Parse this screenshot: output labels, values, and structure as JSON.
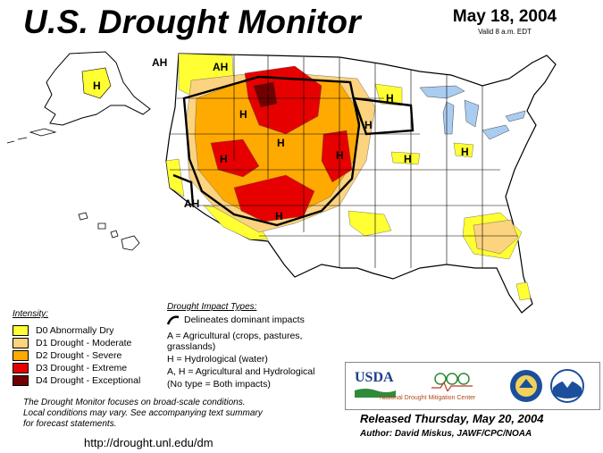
{
  "header": {
    "title": "U.S. Drought Monitor",
    "date": "May 18, 2004",
    "valid": "Valid 8 a.m. EDT"
  },
  "colors": {
    "D0": "#ffff33",
    "D1": "#fcd37f",
    "D2": "#ffaa00",
    "D3": "#e60000",
    "D4": "#730000",
    "water": "#a9cdf0",
    "land": "#ffffff",
    "border": "#000000"
  },
  "map_labels": [
    {
      "id": "ah-alaska-west",
      "text": "AH"
    },
    {
      "id": "ah-wa",
      "text": "AH"
    },
    {
      "id": "h-alaska",
      "text": "H"
    },
    {
      "id": "h-mt",
      "text": "H"
    },
    {
      "id": "h-wy",
      "text": "H"
    },
    {
      "id": "h-id",
      "text": "H"
    },
    {
      "id": "h-ne",
      "text": "H"
    },
    {
      "id": "h-mn",
      "text": "H"
    },
    {
      "id": "h-ia",
      "text": "H"
    },
    {
      "id": "h-il",
      "text": "H"
    },
    {
      "id": "h-mi",
      "text": "H"
    },
    {
      "id": "ah-ca",
      "text": "AH"
    },
    {
      "id": "h-nm",
      "text": "H"
    }
  ],
  "legend": {
    "intensity_title": "Intensity:",
    "items": [
      {
        "key": "D0",
        "label": "D0 Abnormally Dry"
      },
      {
        "key": "D1",
        "label": "D1 Drought - Moderate"
      },
      {
        "key": "D2",
        "label": "D2 Drought - Severe"
      },
      {
        "key": "D3",
        "label": "D3 Drought - Extreme"
      },
      {
        "key": "D4",
        "label": "D4 Drought - Exceptional"
      }
    ],
    "impact_title": "Drought Impact Types:",
    "impact_line1": "Delineates dominant impacts",
    "impact_a1": "A = Agricultural (crops, pastures,",
    "impact_a2": "grasslands)",
    "impact_h": "H = Hydrological (water)",
    "impact_ah": "A, H = Agricultural and Hydrological",
    "impact_none": "(No type = Both impacts)"
  },
  "notes": {
    "line1": "The Drought Monitor focuses on broad-scale conditions.",
    "line2": "Local conditions may vary.  See accompanying text summary",
    "line3": "for forecast statements."
  },
  "url": "http://drought.unl.edu/dm",
  "logos": {
    "usda": "USDA",
    "ndmc": "National Drought Mitigation Center"
  },
  "footer": {
    "released": "Released Thursday, May 20, 2004",
    "author": "Author: David Miskus, JAWF/CPC/NOAA"
  }
}
